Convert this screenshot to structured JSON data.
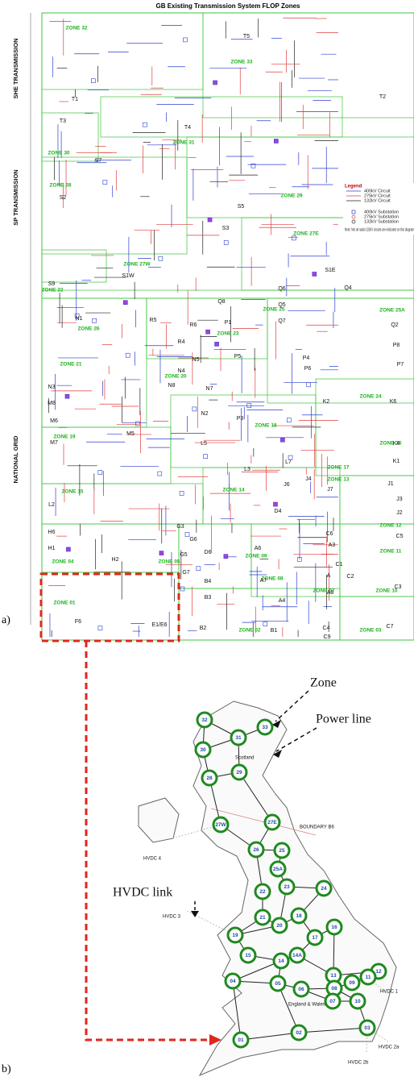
{
  "title": "GB Existing Transmission System FLOP Zones",
  "side_labels": [
    "SHE TRANSMISSION",
    "SP TRANSMISSION",
    "NATIONAL GRID"
  ],
  "legend": {
    "title": "Legend",
    "items": [
      "400kV Circuit",
      "275kV Circuit",
      "132kV Circuit",
      "400kV Substation",
      "275kV Substation",
      "132kV Substation"
    ],
    "note": "Note: Not all radial 132kV circuits are indicated on this diagram"
  },
  "zones": [
    "ZONE 32",
    "ZONE 33",
    "ZONE 31",
    "ZONE 30",
    "ZONE 28",
    "ZONE 29",
    "ZONE 27E",
    "ZONE 27W",
    "ZONE 22",
    "ZONE 26",
    "ZONE 25",
    "ZONE 25A",
    "ZONE 23",
    "ZONE 21",
    "ZONE 20",
    "ZONE 24",
    "ZONE 19",
    "ZONE 18",
    "ZONE 16",
    "ZONE 17",
    "ZONE 15",
    "ZONE 14",
    "ZONE 13",
    "ZONE 12",
    "ZONE 11",
    "ZONE 04",
    "ZONE 05",
    "ZONE 09",
    "ZONE 08",
    "ZONE 07",
    "ZONE 10",
    "ZONE 01",
    "ZONE 02",
    "ZONE 03"
  ],
  "nodes": [
    "T5",
    "T1",
    "T2",
    "T3",
    "T4",
    "S7",
    "S2",
    "S5",
    "S3",
    "S1W",
    "S1E",
    "S9",
    "Q6",
    "Q4",
    "Q5",
    "Q8",
    "Q7",
    "Q2",
    "R5",
    "P1",
    "N1",
    "R4",
    "R6",
    "P8",
    "N5",
    "N4",
    "P7",
    "P5",
    "P4",
    "P6",
    "N3",
    "N8",
    "N7",
    "K6",
    "M8",
    "K2",
    "P3",
    "N2",
    "M6",
    "M5",
    "M7",
    "K4",
    "L5",
    "K1",
    "L3",
    "L7",
    "J1",
    "J6",
    "J4",
    "J7",
    "L2",
    "J3",
    "J2",
    "D4",
    "H6",
    "G3",
    "G6",
    "D6",
    "A6",
    "A3",
    "C6",
    "C1",
    "C5",
    "H1",
    "H2",
    "G5",
    "A7",
    "A",
    "C2",
    "C3",
    "G7",
    "B4",
    "A4",
    "A8",
    "B3",
    "F6",
    "E1/E6",
    "B2",
    "B1",
    "C4",
    "C7",
    "C9"
  ],
  "figure_labels": [
    "a)",
    "b)"
  ],
  "map": {
    "zones": [
      "32",
      "33",
      "31",
      "30",
      "29",
      "28",
      "27E",
      "27W",
      "26",
      "25",
      "25A",
      "22",
      "23",
      "24",
      "21",
      "20",
      "18",
      "19",
      "17",
      "16",
      "15",
      "14A",
      "14",
      "13",
      "12",
      "04",
      "05",
      "06",
      "08",
      "09",
      "11",
      "10",
      "07",
      "03",
      "02",
      "01"
    ],
    "labels": [
      "Zone",
      "Power line",
      "HVDC link",
      "Scotland",
      "BOUNDARY B6",
      "HVDC 4",
      "HVDC 3",
      "England & Wales",
      "HVDC 1",
      "HVDC 2a",
      "HVDC 2b"
    ]
  }
}
